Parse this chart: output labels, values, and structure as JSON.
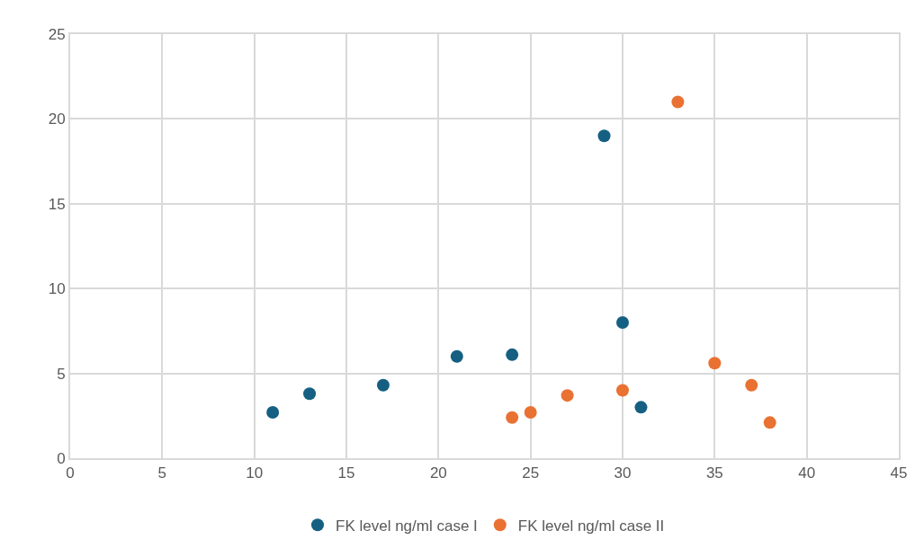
{
  "chart_data": {
    "type": "scatter",
    "xlim": [
      0,
      45
    ],
    "xticks": [
      0,
      5,
      10,
      15,
      20,
      25,
      30,
      35,
      40,
      45
    ],
    "ylim": [
      0,
      25
    ],
    "yticks": [
      0,
      5,
      10,
      15,
      20,
      25
    ],
    "grid": true,
    "legend": "bottom",
    "marker": "circle",
    "series": [
      {
        "name": "FK level ng/ml case I",
        "color": "#156082",
        "x": [
          11,
          13,
          17,
          21,
          24,
          29,
          30,
          31
        ],
        "values": [
          2.7,
          3.8,
          4.3,
          6.0,
          6.1,
          19.0,
          8.0,
          3.0
        ]
      },
      {
        "name": "FK level ng/ml case II",
        "color": "#e97132",
        "x": [
          24,
          25,
          27,
          30,
          33,
          35,
          37,
          38
        ],
        "values": [
          2.4,
          2.7,
          3.7,
          4.0,
          21.0,
          5.6,
          4.3,
          2.1
        ]
      }
    ]
  }
}
